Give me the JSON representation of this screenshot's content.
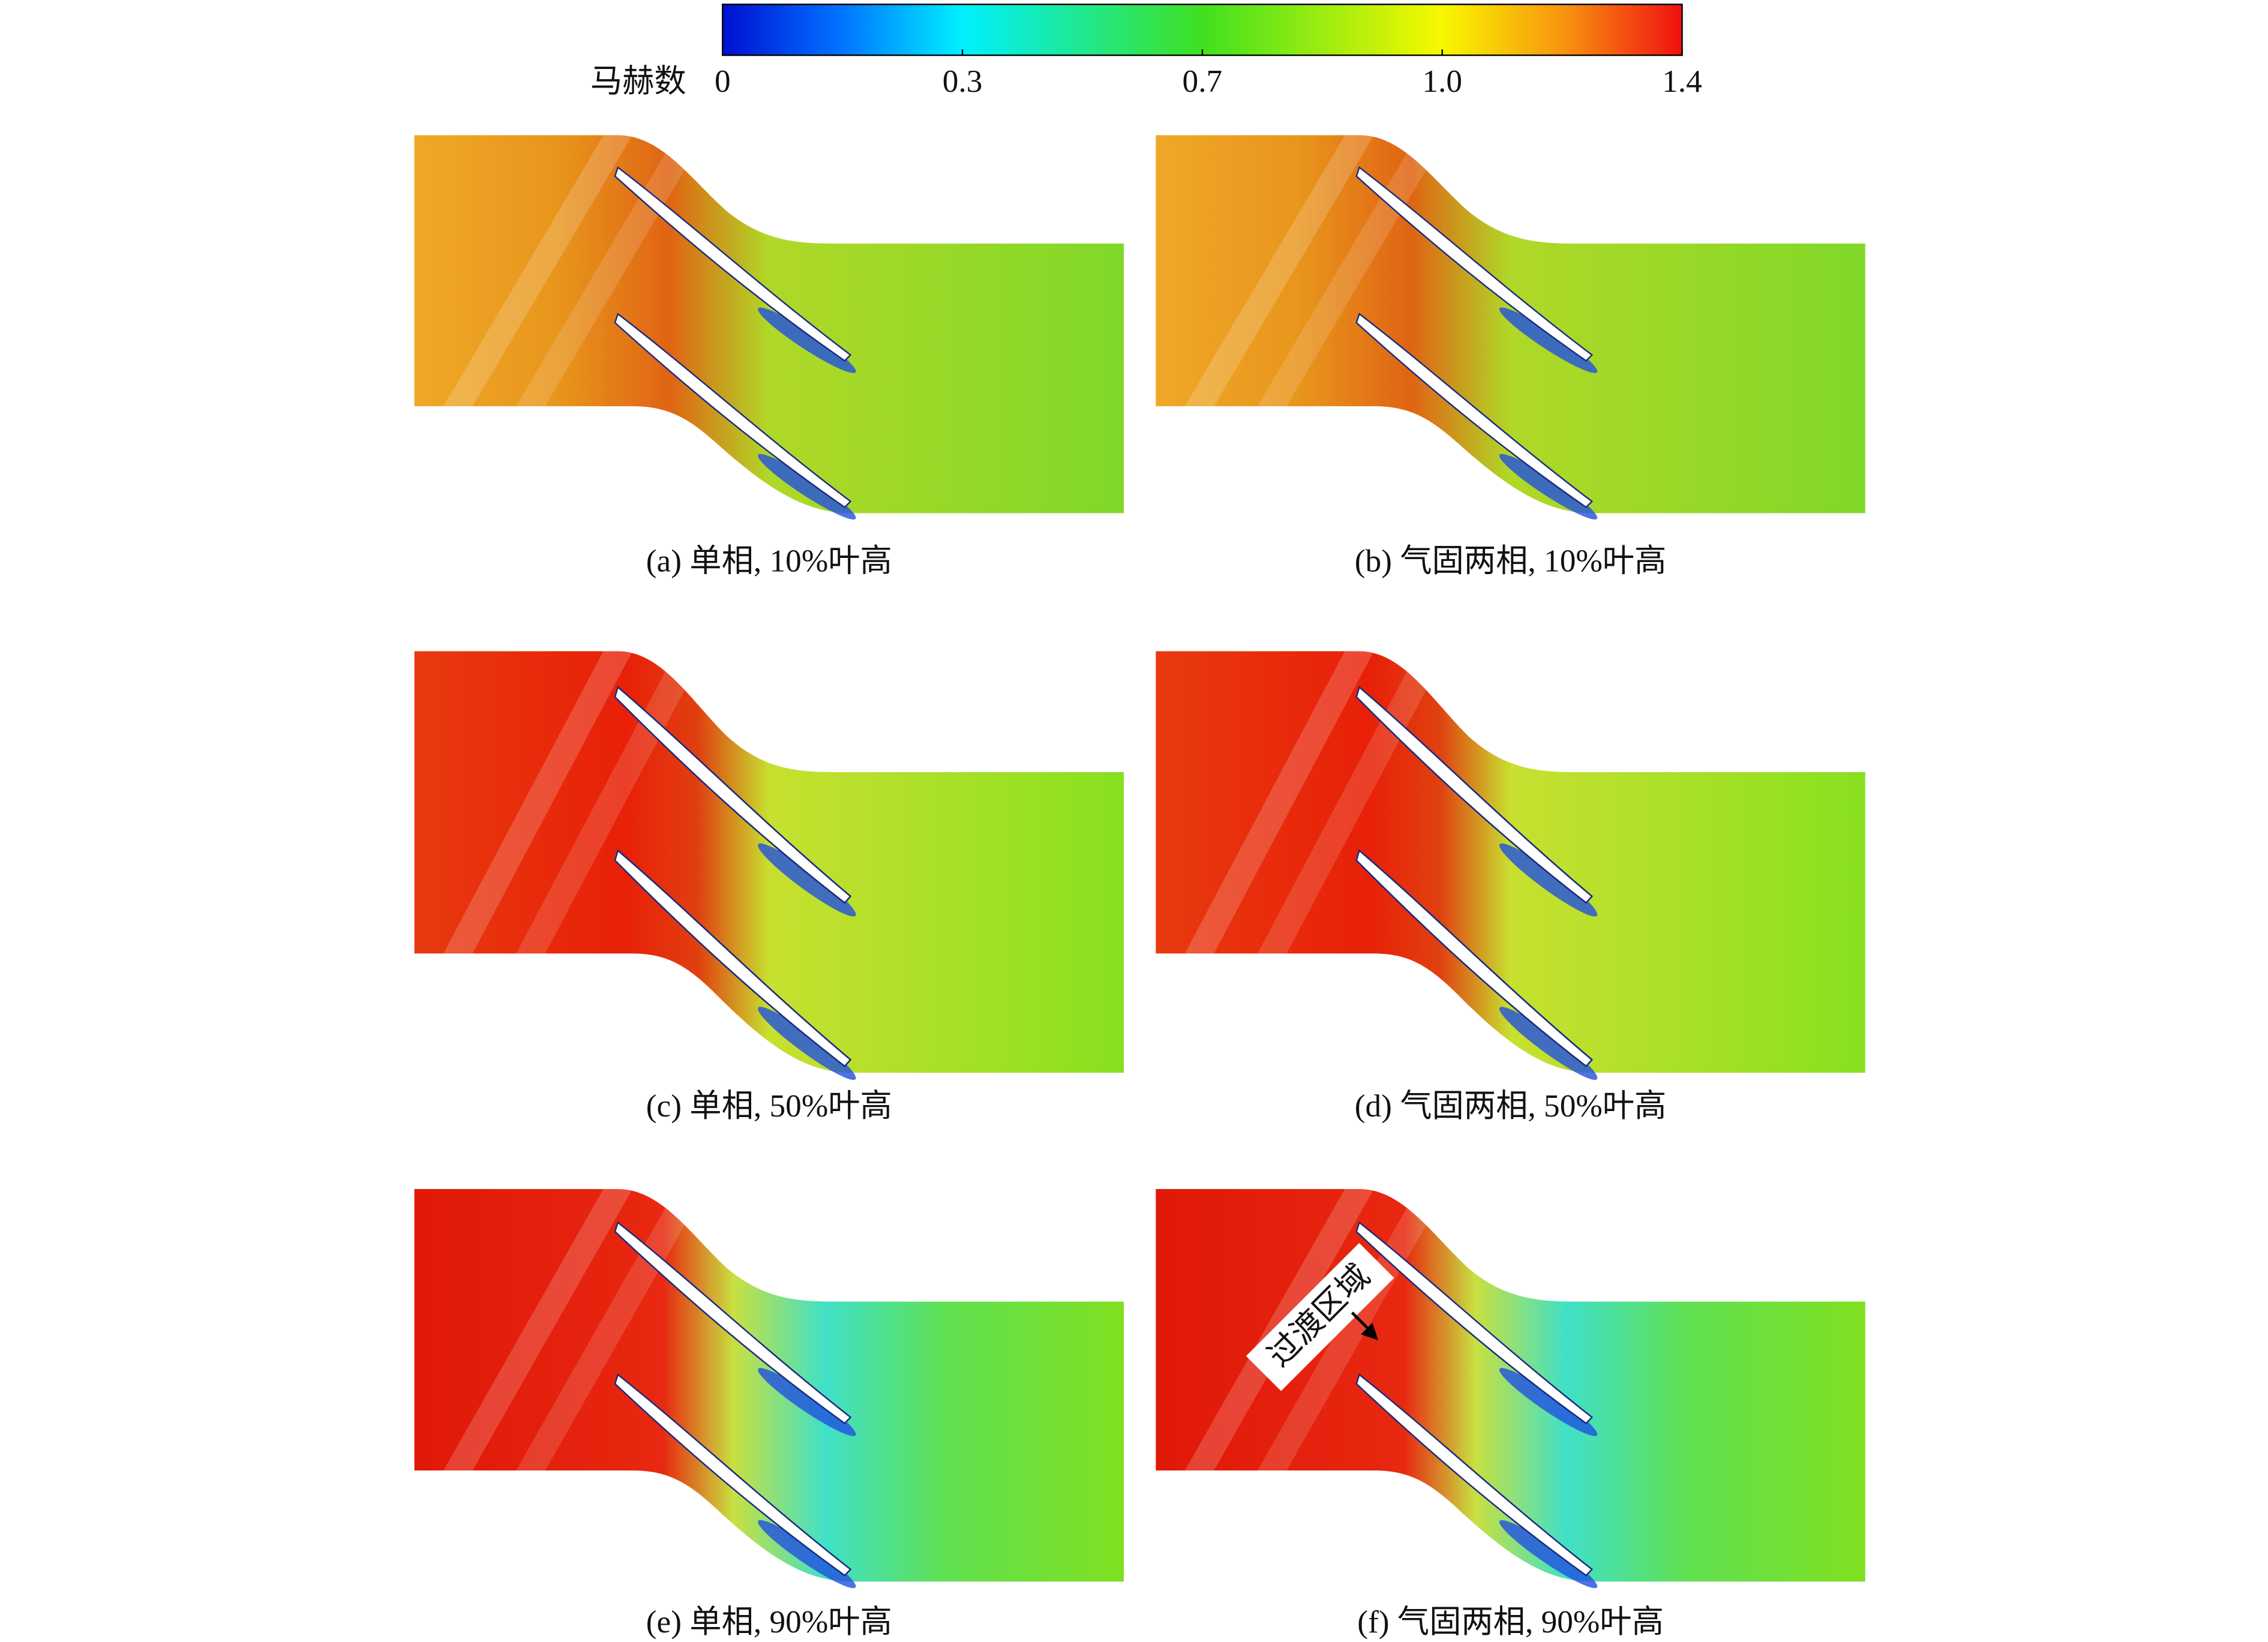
{
  "colorbar": {
    "label": "马赫数",
    "ticks": [
      0,
      0.3,
      0.7,
      {
        "value": 1.0,
        "label": "1.0"
      },
      1.4
    ]
  },
  "panels": [
    {
      "caption": "(a) 单相, 10%叶高"
    },
    {
      "caption": "(b) 气固两相, 10%叶高"
    },
    {
      "caption": "(c) 单相, 50%叶高"
    },
    {
      "caption": "(d) 气固两相, 50%叶高"
    },
    {
      "caption": "(e) 单相, 90%叶高"
    },
    {
      "caption": "(f) 气固两相, 90%叶高"
    }
  ],
  "annotation": "过渡区域"
}
